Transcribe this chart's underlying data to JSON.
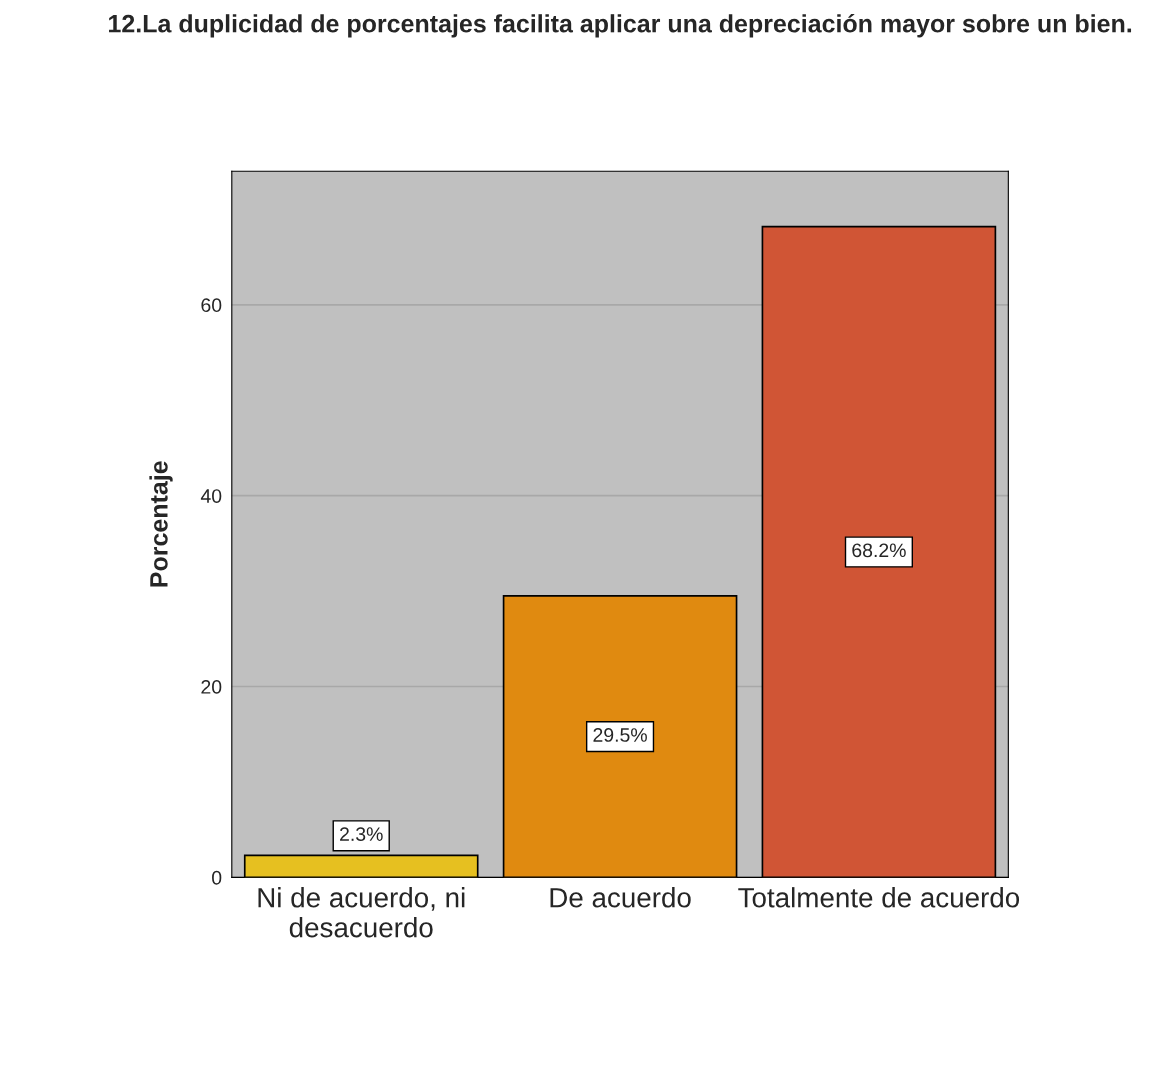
{
  "chart_data": {
    "type": "bar",
    "title": "12.La duplicidad de porcentajes facilita aplicar una depreciación mayor sobre un bien.",
    "ylabel": "Porcentaje",
    "categories": [
      "Ni de acuerdo, ni\ndesacuerdo",
      "De acuerdo",
      "Totalmente de acuerdo"
    ],
    "values": [
      2.3,
      29.5,
      68.2
    ],
    "colors": [
      "#e6c020",
      "#e08a10",
      "#d05535"
    ],
    "value_labels": [
      "2.3%",
      "29.5%",
      "68.2%"
    ],
    "ylim": [
      0,
      74
    ],
    "yticks": [
      0,
      20,
      40,
      60
    ],
    "grid": "y"
  }
}
